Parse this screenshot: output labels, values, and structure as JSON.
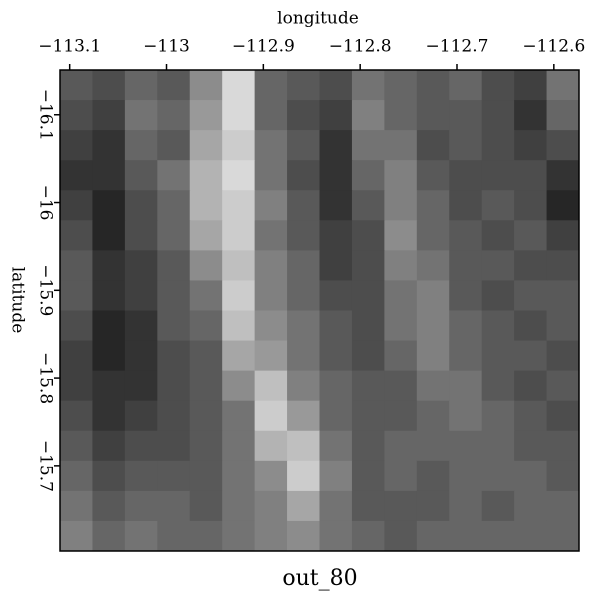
{
  "chart_data": {
    "type": "heatmap",
    "title": "out_80",
    "x_label": "longitude",
    "y_label": "latitude",
    "xlim": [
      -113.11,
      -112.574
    ],
    "xticks": [
      {
        "value": -113.1,
        "label": "−113.1"
      },
      {
        "value": -113,
        "label": "−113"
      },
      {
        "value": -112.9,
        "label": "−112.9"
      },
      {
        "value": -112.8,
        "label": "−112.8"
      },
      {
        "value": -112.7,
        "label": "−112.7"
      },
      {
        "value": -112.6,
        "label": "−112.6"
      }
    ],
    "ylim": [
      -16.151,
      -15.603
    ],
    "y_inverted": true,
    "yticks": [
      {
        "value": -16.1,
        "label": "−16.1"
      },
      {
        "value": -16,
        "label": "−16"
      },
      {
        "value": -15.9,
        "label": "−15.9"
      },
      {
        "value": -15.8,
        "label": "−15.8"
      },
      {
        "value": -15.7,
        "label": "−15.7"
      }
    ],
    "colormap": "gray",
    "z": [
      [
        0.35,
        0.3,
        0.4,
        0.35,
        0.55,
        0.85,
        0.4,
        0.35,
        0.3,
        0.45,
        0.4,
        0.35,
        0.4,
        0.3,
        0.25,
        0.45
      ],
      [
        0.3,
        0.25,
        0.45,
        0.4,
        0.6,
        0.85,
        0.4,
        0.3,
        0.25,
        0.5,
        0.4,
        0.35,
        0.35,
        0.3,
        0.2,
        0.4
      ],
      [
        0.25,
        0.2,
        0.4,
        0.35,
        0.65,
        0.8,
        0.45,
        0.35,
        0.2,
        0.45,
        0.45,
        0.3,
        0.35,
        0.3,
        0.25,
        0.3
      ],
      [
        0.2,
        0.2,
        0.35,
        0.45,
        0.7,
        0.85,
        0.45,
        0.3,
        0.2,
        0.4,
        0.5,
        0.35,
        0.3,
        0.3,
        0.3,
        0.2
      ],
      [
        0.25,
        0.15,
        0.3,
        0.4,
        0.7,
        0.8,
        0.5,
        0.35,
        0.2,
        0.35,
        0.5,
        0.4,
        0.3,
        0.35,
        0.3,
        0.15
      ],
      [
        0.3,
        0.15,
        0.3,
        0.4,
        0.65,
        0.8,
        0.45,
        0.35,
        0.25,
        0.3,
        0.55,
        0.4,
        0.35,
        0.3,
        0.35,
        0.25
      ],
      [
        0.35,
        0.2,
        0.25,
        0.35,
        0.55,
        0.75,
        0.5,
        0.4,
        0.25,
        0.3,
        0.5,
        0.45,
        0.35,
        0.35,
        0.3,
        0.3
      ],
      [
        0.35,
        0.2,
        0.25,
        0.35,
        0.45,
        0.8,
        0.5,
        0.4,
        0.3,
        0.3,
        0.45,
        0.5,
        0.35,
        0.3,
        0.35,
        0.35
      ],
      [
        0.3,
        0.15,
        0.2,
        0.35,
        0.4,
        0.75,
        0.55,
        0.45,
        0.35,
        0.3,
        0.45,
        0.5,
        0.4,
        0.35,
        0.3,
        0.35
      ],
      [
        0.25,
        0.15,
        0.2,
        0.3,
        0.35,
        0.65,
        0.6,
        0.45,
        0.35,
        0.3,
        0.4,
        0.5,
        0.4,
        0.35,
        0.35,
        0.3
      ],
      [
        0.25,
        0.2,
        0.2,
        0.3,
        0.35,
        0.55,
        0.75,
        0.5,
        0.4,
        0.35,
        0.35,
        0.45,
        0.45,
        0.35,
        0.3,
        0.35
      ],
      [
        0.3,
        0.2,
        0.25,
        0.3,
        0.35,
        0.45,
        0.8,
        0.6,
        0.4,
        0.35,
        0.35,
        0.4,
        0.45,
        0.4,
        0.35,
        0.3
      ],
      [
        0.35,
        0.25,
        0.3,
        0.3,
        0.35,
        0.45,
        0.7,
        0.75,
        0.45,
        0.35,
        0.4,
        0.4,
        0.4,
        0.4,
        0.35,
        0.35
      ],
      [
        0.4,
        0.3,
        0.35,
        0.35,
        0.35,
        0.45,
        0.55,
        0.8,
        0.5,
        0.35,
        0.4,
        0.35,
        0.4,
        0.4,
        0.4,
        0.35
      ],
      [
        0.45,
        0.35,
        0.4,
        0.4,
        0.35,
        0.45,
        0.5,
        0.65,
        0.45,
        0.35,
        0.35,
        0.35,
        0.4,
        0.35,
        0.4,
        0.4
      ],
      [
        0.5,
        0.4,
        0.45,
        0.4,
        0.4,
        0.45,
        0.5,
        0.55,
        0.45,
        0.4,
        0.35,
        0.4,
        0.4,
        0.4,
        0.4,
        0.4
      ]
    ]
  }
}
